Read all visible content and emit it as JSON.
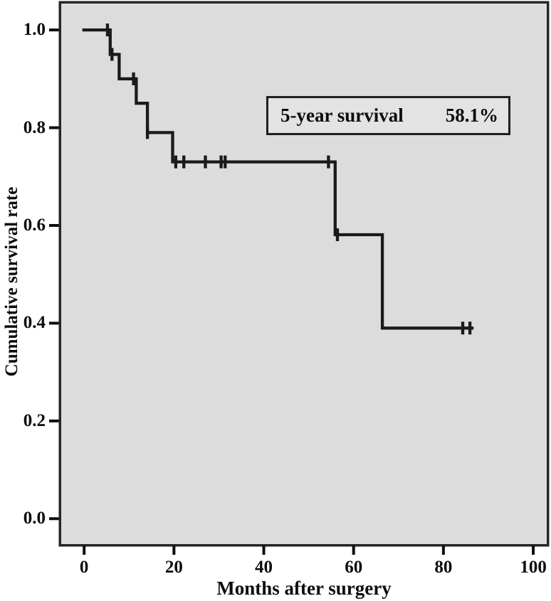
{
  "chart_data": {
    "type": "line",
    "subtype": "kaplan-meier-step",
    "title": "",
    "xlabel": "Months after surgery",
    "ylabel": "Cumulative survival rate",
    "xlim": [
      -5.1,
      103.0
    ],
    "ylim": [
      -0.052,
      1.054
    ],
    "grid": false,
    "legend": "none",
    "xticks": [
      {
        "v": 0,
        "label": "0"
      },
      {
        "v": 20,
        "label": "20"
      },
      {
        "v": 40,
        "label": "40"
      },
      {
        "v": 60,
        "label": "60"
      },
      {
        "v": 80,
        "label": "80"
      },
      {
        "v": 100,
        "label": "100"
      }
    ],
    "yticks": [
      {
        "v": 0.0,
        "label": "0.0"
      },
      {
        "v": 0.2,
        "label": "0.2"
      },
      {
        "v": 0.4,
        "label": "0.4"
      },
      {
        "v": 0.6,
        "label": "0.6"
      },
      {
        "v": 0.8,
        "label": "0.8"
      },
      {
        "v": 1.0,
        "label": "1.0"
      }
    ],
    "series": [
      {
        "name": "cumulative-survival",
        "step_points": [
          [
            -0.4,
            1.0
          ],
          [
            5.8,
            1.0
          ],
          [
            5.8,
            0.95
          ],
          [
            7.8,
            0.95
          ],
          [
            7.8,
            0.9
          ],
          [
            11.6,
            0.9
          ],
          [
            11.6,
            0.85
          ],
          [
            14.1,
            0.85
          ],
          [
            14.1,
            0.79
          ],
          [
            19.7,
            0.79
          ],
          [
            19.7,
            0.73
          ],
          [
            55.9,
            0.73
          ],
          [
            55.9,
            0.581
          ],
          [
            66.4,
            0.581
          ],
          [
            66.4,
            0.39
          ],
          [
            86.7,
            0.39
          ]
        ],
        "censor_marks": [
          [
            5.2,
            1.0
          ],
          [
            6.2,
            0.95
          ],
          [
            11.0,
            0.9
          ],
          [
            14.1,
            0.79
          ],
          [
            20.4,
            0.73
          ],
          [
            22.2,
            0.73
          ],
          [
            27.0,
            0.73
          ],
          [
            30.5,
            0.73
          ],
          [
            31.4,
            0.73
          ],
          [
            54.4,
            0.73
          ],
          [
            56.4,
            0.581
          ],
          [
            84.3,
            0.39
          ],
          [
            85.9,
            0.39
          ]
        ]
      }
    ],
    "annotation": {
      "label": "5-year survival",
      "value": "58.1%"
    },
    "colors": {
      "plot_bg": "#dcdcdc",
      "frame": "#262626",
      "line": "#1a1a1a",
      "tick": "#0d0d0d",
      "annotation_bg": "#e3e3e3",
      "annotation_border": "#1f1f1f"
    }
  }
}
